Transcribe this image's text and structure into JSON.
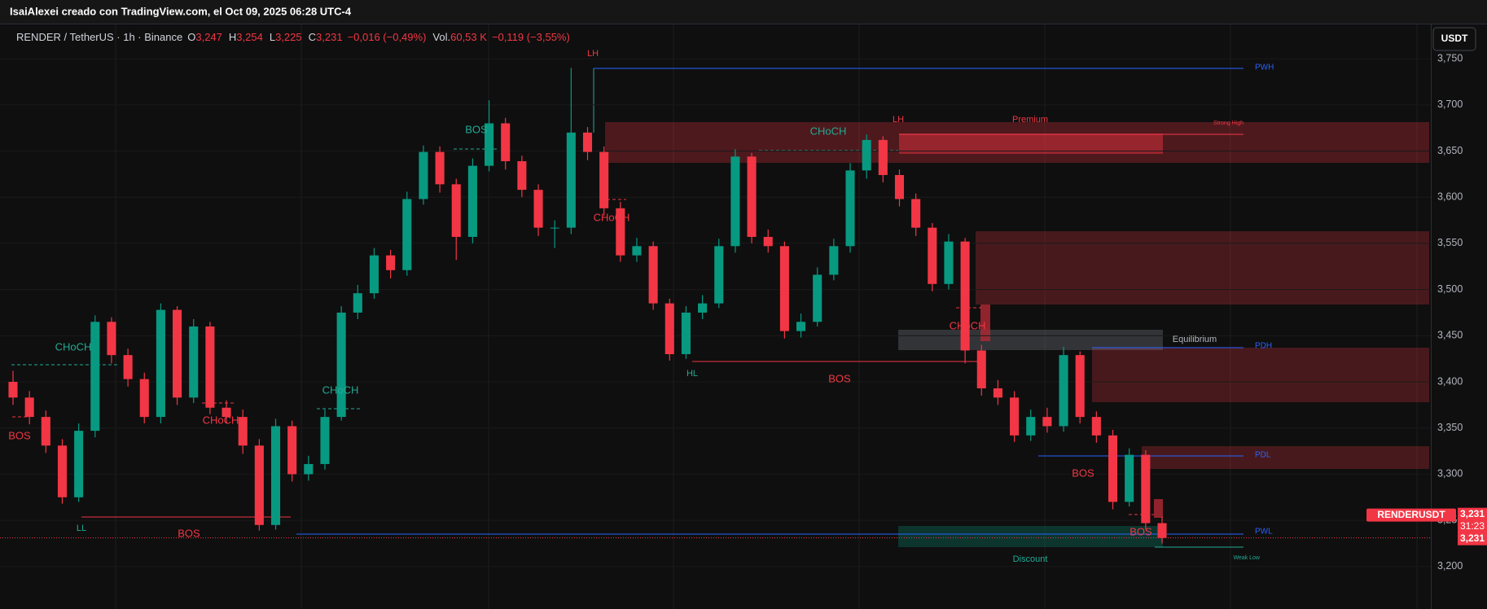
{
  "page": {
    "attribution": "IsaiAlexei creado con TradingView.com, el Oct 09, 2025 06:28 UTC-4",
    "currency_button": "USDT"
  },
  "chart_data": {
    "type": "candlestick",
    "title": "RENDER / TetherUS · 1h · Binance",
    "ohlc": [
      {
        "key": "O",
        "value": "3,247"
      },
      {
        "key": "H",
        "value": "3,254"
      },
      {
        "key": "L",
        "value": "3,225"
      },
      {
        "key": "C",
        "value": "3,231"
      }
    ],
    "change": "−0,016 (−0,49%)",
    "volume_key": "Vol.",
    "volume": "60,53 K",
    "volume_change": "−0,119 (−3,55%)",
    "up_color": "#089981",
    "down_color": "#f23645",
    "open": [
      3.4,
      3.383,
      3.362,
      3.331,
      3.275,
      3.347,
      3.465,
      3.429,
      3.403,
      3.362,
      3.478,
      3.383,
      3.46,
      3.372,
      3.362,
      3.331,
      3.245,
      3.352,
      3.3,
      3.311,
      3.362,
      3.475,
      3.496,
      3.537,
      3.521,
      3.598,
      3.649,
      3.614,
      3.557,
      3.634,
      3.68,
      3.639,
      3.608,
      3.567,
      3.567,
      3.67,
      3.649,
      3.588,
      3.537,
      3.547,
      3.485,
      3.43,
      3.475,
      3.485,
      3.547,
      3.644,
      3.557,
      3.547,
      3.455,
      3.465,
      3.516,
      3.547,
      3.629,
      3.662,
      3.624,
      3.598,
      3.567,
      3.506,
      3.552,
      3.434,
      3.393,
      3.383,
      3.342,
      3.362,
      3.352,
      3.429,
      3.362,
      3.342,
      3.27,
      3.321,
      3.247
    ],
    "high": [
      3.412,
      3.39,
      3.369,
      3.338,
      3.355,
      3.472,
      3.47,
      3.436,
      3.41,
      3.485,
      3.482,
      3.468,
      3.465,
      3.38,
      3.37,
      3.338,
      3.36,
      3.358,
      3.32,
      3.37,
      3.482,
      3.505,
      3.545,
      3.543,
      3.606,
      3.656,
      3.655,
      3.62,
      3.642,
      3.705,
      3.686,
      3.645,
      3.614,
      3.575,
      3.74,
      3.676,
      3.655,
      3.595,
      3.556,
      3.552,
      3.49,
      3.482,
      3.494,
      3.555,
      3.652,
      3.648,
      3.565,
      3.552,
      3.474,
      3.524,
      3.555,
      3.637,
      3.668,
      3.666,
      3.63,
      3.604,
      3.572,
      3.56,
      3.556,
      3.44,
      3.402,
      3.39,
      3.37,
      3.372,
      3.438,
      3.433,
      3.368,
      3.348,
      3.328,
      3.326,
      3.254
    ],
    "low": [
      3.375,
      3.354,
      3.323,
      3.268,
      3.27,
      3.34,
      3.42,
      3.395,
      3.355,
      3.355,
      3.375,
      3.377,
      3.365,
      3.355,
      3.322,
      3.239,
      3.24,
      3.292,
      3.293,
      3.305,
      3.358,
      3.468,
      3.49,
      3.512,
      3.515,
      3.592,
      3.605,
      3.532,
      3.55,
      3.628,
      3.63,
      3.6,
      3.558,
      3.545,
      3.56,
      3.64,
      3.58,
      3.53,
      3.53,
      3.478,
      3.423,
      3.425,
      3.468,
      3.48,
      3.54,
      3.55,
      3.54,
      3.447,
      3.448,
      3.46,
      3.51,
      3.54,
      3.62,
      3.616,
      3.59,
      3.558,
      3.498,
      3.5,
      3.42,
      3.385,
      3.375,
      3.335,
      3.336,
      3.345,
      3.346,
      3.355,
      3.334,
      3.262,
      3.265,
      3.24,
      3.225
    ],
    "close": [
      3.383,
      3.362,
      3.331,
      3.275,
      3.347,
      3.465,
      3.429,
      3.403,
      3.362,
      3.478,
      3.383,
      3.46,
      3.372,
      3.362,
      3.331,
      3.245,
      3.352,
      3.3,
      3.311,
      3.362,
      3.475,
      3.496,
      3.537,
      3.521,
      3.598,
      3.649,
      3.614,
      3.557,
      3.634,
      3.68,
      3.639,
      3.608,
      3.567,
      3.567,
      3.67,
      3.649,
      3.588,
      3.537,
      3.547,
      3.485,
      3.43,
      3.475,
      3.485,
      3.547,
      3.644,
      3.557,
      3.547,
      3.455,
      3.465,
      3.516,
      3.547,
      3.629,
      3.662,
      3.624,
      3.598,
      3.567,
      3.506,
      3.552,
      3.434,
      3.393,
      3.383,
      3.342,
      3.362,
      3.352,
      3.429,
      3.362,
      3.342,
      3.27,
      3.321,
      3.247,
      3.231
    ],
    "ylim": [
      3.154,
      3.788
    ],
    "yticks": [
      {
        "value": 3.2,
        "label": "3,200"
      },
      {
        "value": 3.25,
        "label": "3,250"
      },
      {
        "value": 3.3,
        "label": "3,300"
      },
      {
        "value": 3.35,
        "label": "3,350"
      },
      {
        "value": 3.4,
        "label": "3,400"
      },
      {
        "value": 3.45,
        "label": "3,450"
      },
      {
        "value": 3.5,
        "label": "3,500"
      },
      {
        "value": 3.55,
        "label": "3,550"
      },
      {
        "value": 3.6,
        "label": "3,600"
      },
      {
        "value": 3.65,
        "label": "3,650"
      },
      {
        "value": 3.7,
        "label": "3,700"
      },
      {
        "value": 3.75,
        "label": "3,750"
      }
    ],
    "grid": true,
    "last_price": {
      "value": 3.231,
      "label": "3,231",
      "symbol": "RENDERUSDT",
      "countdown": "31:23"
    },
    "annotations": [
      {
        "text": "CHoCH",
        "color": "#22ab94"
      },
      {
        "text": "BOS",
        "color": "#f23645"
      },
      {
        "text": "LL",
        "color": "#22ab94"
      },
      {
        "text": "BOS",
        "color": "#f23645"
      },
      {
        "text": "CHoCH",
        "color": "#f23645"
      },
      {
        "text": "CHoCH",
        "color": "#22ab94"
      },
      {
        "text": "BOS",
        "color": "#22ab94"
      },
      {
        "text": "LH",
        "color": "#f23645"
      },
      {
        "text": "CHoCH",
        "color": "#f23645"
      },
      {
        "text": "CHoCH",
        "color": "#22ab94"
      },
      {
        "text": "LH",
        "color": "#f23645"
      },
      {
        "text": "Premium",
        "color": "#f23645"
      },
      {
        "text": "Strong High",
        "color": "#f23645"
      },
      {
        "text": "HL",
        "color": "#22ab94"
      },
      {
        "text": "BOS",
        "color": "#f23645"
      },
      {
        "text": "CHoCH",
        "color": "#f23645"
      },
      {
        "text": "Equilibrium",
        "color": "#b2b5be"
      },
      {
        "text": "BOS",
        "color": "#f23645"
      },
      {
        "text": "BOS",
        "color": "#f23645"
      },
      {
        "text": "Discount",
        "color": "#22ab94"
      },
      {
        "text": "Weak Low",
        "color": "#22ab94"
      },
      {
        "text": "PWH",
        "color": "#2962ff"
      },
      {
        "text": "PDH",
        "color": "#2962ff"
      },
      {
        "text": "PDL",
        "color": "#2962ff"
      },
      {
        "text": "PWL",
        "color": "#2962ff"
      }
    ]
  }
}
